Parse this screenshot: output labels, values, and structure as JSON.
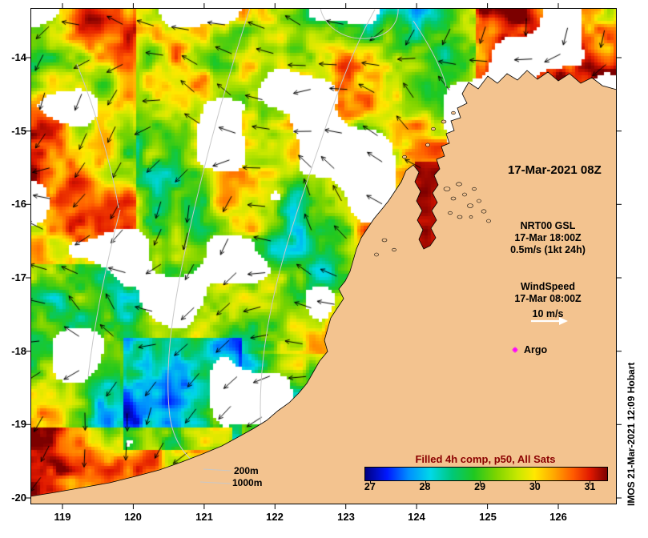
{
  "figure": {
    "datetime_label": "17-Mar-2021 08Z",
    "credit": "IMOS 21-Mar-2021 12:09 Hobart"
  },
  "axes": {
    "x_ticks": [
      "119",
      "120",
      "121",
      "122",
      "123",
      "124",
      "125",
      "126"
    ],
    "y_ticks": [
      "-14",
      "-15",
      "-16",
      "-17",
      "-18",
      "-19",
      "-20"
    ]
  },
  "annotations": {
    "gsl": {
      "l1": "NRT00 GSL",
      "l2": "17-Mar 18:00Z",
      "l3": "0.5m/s (1kt 24h)"
    },
    "wind": {
      "l1": "WindSpeed",
      "l2": "17-Mar 08:00Z",
      "l3": "10 m/s"
    },
    "argo_label": "Argo",
    "depth_200": "200m",
    "depth_1000": "1000m"
  },
  "colorbar": {
    "title": "Filled 4h comp, p50, All Sats",
    "title_color": "#8b0000",
    "ticks": [
      27,
      28,
      29,
      30,
      31
    ],
    "min": 26.9,
    "max": 31.3,
    "stops": [
      [
        0.0,
        "#000080"
      ],
      [
        0.09,
        "#0018ff"
      ],
      [
        0.18,
        "#0090ff"
      ],
      [
        0.27,
        "#00d8e8"
      ],
      [
        0.36,
        "#00c878"
      ],
      [
        0.45,
        "#20c820"
      ],
      [
        0.54,
        "#7cd400"
      ],
      [
        0.63,
        "#c8e800"
      ],
      [
        0.7,
        "#ffe800"
      ],
      [
        0.78,
        "#ffa800"
      ],
      [
        0.86,
        "#ff5a00"
      ],
      [
        0.93,
        "#e01800"
      ],
      [
        1.0,
        "#7c0000"
      ]
    ]
  },
  "map": {
    "land_color": "#f3c38f",
    "coastline_color": "#000000",
    "contour_color": "#c8c8c8",
    "vector_color": "#000000",
    "wind_arrow_color": "#ffffff",
    "argo_color": "#ff00ff",
    "no_data_color": "#ffffff"
  }
}
